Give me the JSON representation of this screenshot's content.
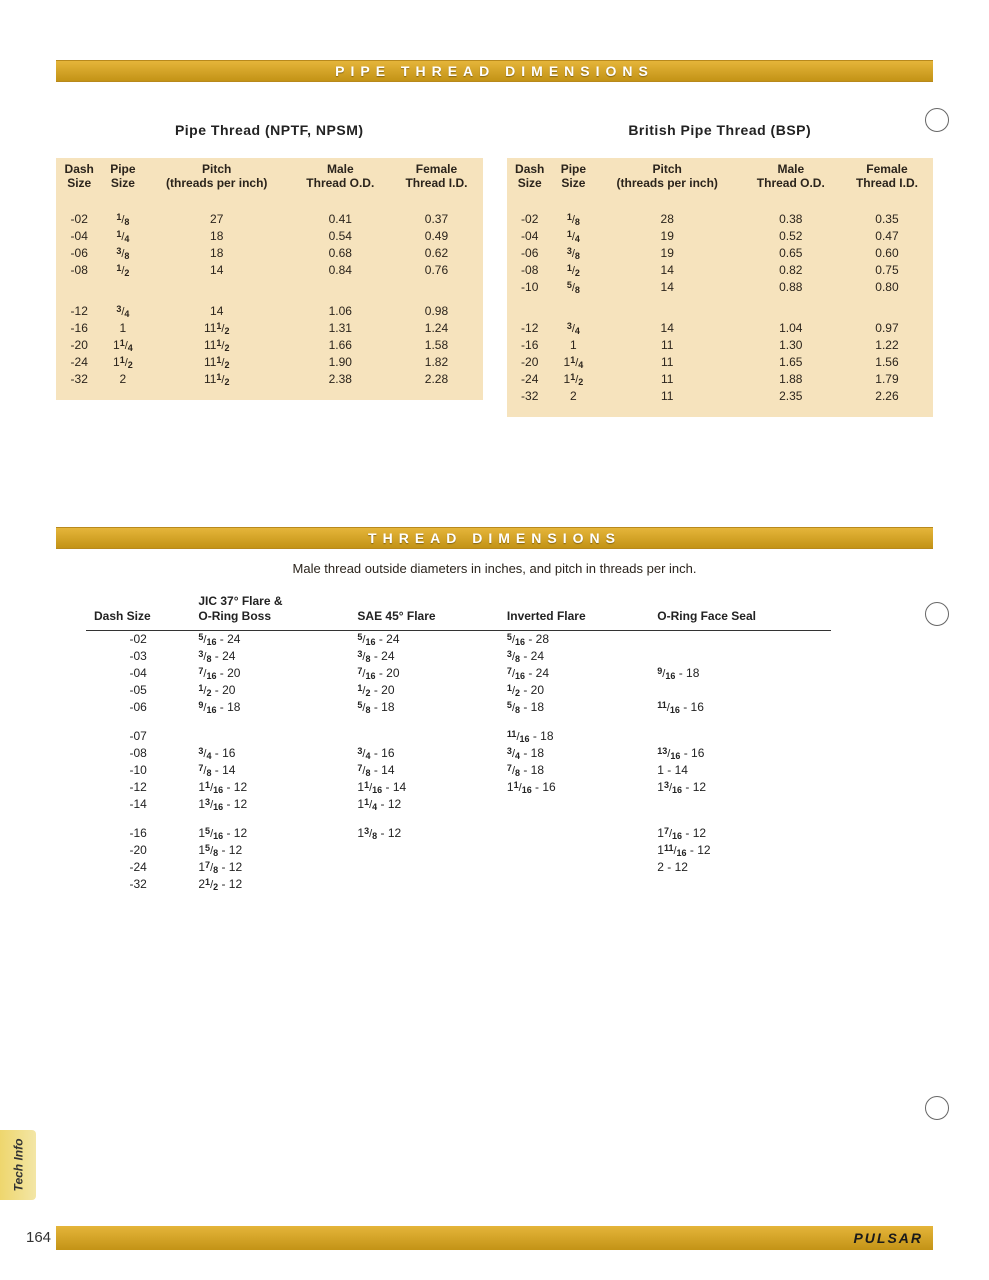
{
  "colors": {
    "banner_bg_top": "#e5b53a",
    "banner_bg_bottom": "#c39316",
    "banner_text": "#ffffff",
    "table_header_bg": "#f6e3bd",
    "table_row_bg": "#f6e3bd",
    "text": "#2b241c",
    "rule": "#333333",
    "tab_bg_start": "#eed66d",
    "tab_bg_end": "#f3e6a6",
    "hole_border": "#666666"
  },
  "typography": {
    "font_family": "Verdana, Geneva, sans-serif",
    "banner_title_size": 14,
    "banner_letter_spacing": 6,
    "table_font_size": 12,
    "subtitle_size": 13
  },
  "banner1_title": "PIPE THREAD DIMENSIONS",
  "banner2_title": "THREAD DIMENSIONS",
  "subtitle": "Male thread outside diameters in inches, and pitch in threads per inch.",
  "pipe_headers": {
    "dash": "Dash\nSize",
    "pipe": "Pipe\nSize",
    "pitch": "Pitch\n(threads per inch)",
    "male": "Male\nThread O.D.",
    "female": "Female\nThread I.D."
  },
  "nptf": {
    "title": "Pipe Thread (NPTF, NPSM)",
    "rows": [
      {
        "dash": "-02",
        "pipe": {
          "w": "",
          "n": "1",
          "d": "8"
        },
        "pitch": "27",
        "male": "0.41",
        "female": "0.37"
      },
      {
        "dash": "-04",
        "pipe": {
          "w": "",
          "n": "1",
          "d": "4"
        },
        "pitch": "18",
        "male": "0.54",
        "female": "0.49"
      },
      {
        "dash": "-06",
        "pipe": {
          "w": "",
          "n": "3",
          "d": "8"
        },
        "pitch": "18",
        "male": "0.68",
        "female": "0.62"
      },
      {
        "dash": "-08",
        "pipe": {
          "w": "",
          "n": "1",
          "d": "2"
        },
        "pitch": "14",
        "male": "0.84",
        "female": "0.76"
      }
    ],
    "rows2": [
      {
        "dash": "-12",
        "pipe": {
          "w": "",
          "n": "3",
          "d": "4"
        },
        "pitch": "14",
        "male": "1.06",
        "female": "0.98"
      },
      {
        "dash": "-16",
        "pipe": {
          "w": "1"
        },
        "pitch": {
          "w": "11",
          "n": "1",
          "d": "2"
        },
        "male": "1.31",
        "female": "1.24"
      },
      {
        "dash": "-20",
        "pipe": {
          "w": "1",
          "n": "1",
          "d": "4"
        },
        "pitch": {
          "w": "11",
          "n": "1",
          "d": "2"
        },
        "male": "1.66",
        "female": "1.58"
      },
      {
        "dash": "-24",
        "pipe": {
          "w": "1",
          "n": "1",
          "d": "2"
        },
        "pitch": {
          "w": "11",
          "n": "1",
          "d": "2"
        },
        "male": "1.90",
        "female": "1.82"
      },
      {
        "dash": "-32",
        "pipe": {
          "w": "2"
        },
        "pitch": {
          "w": "11",
          "n": "1",
          "d": "2"
        },
        "male": "2.38",
        "female": "2.28"
      }
    ]
  },
  "bsp": {
    "title": "British Pipe Thread (BSP)",
    "rows": [
      {
        "dash": "-02",
        "pipe": {
          "w": "",
          "n": "1",
          "d": "8"
        },
        "pitch": "28",
        "male": "0.38",
        "female": "0.35"
      },
      {
        "dash": "-04",
        "pipe": {
          "w": "",
          "n": "1",
          "d": "4"
        },
        "pitch": "19",
        "male": "0.52",
        "female": "0.47"
      },
      {
        "dash": "-06",
        "pipe": {
          "w": "",
          "n": "3",
          "d": "8"
        },
        "pitch": "19",
        "male": "0.65",
        "female": "0.60"
      },
      {
        "dash": "-08",
        "pipe": {
          "w": "",
          "n": "1",
          "d": "2"
        },
        "pitch": "14",
        "male": "0.82",
        "female": "0.75"
      },
      {
        "dash": "-10",
        "pipe": {
          "w": "",
          "n": "5",
          "d": "8"
        },
        "pitch": "14",
        "male": "0.88",
        "female": "0.80"
      }
    ],
    "rows2": [
      {
        "dash": "-12",
        "pipe": {
          "w": "",
          "n": "3",
          "d": "4"
        },
        "pitch": "14",
        "male": "1.04",
        "female": "0.97"
      },
      {
        "dash": "-16",
        "pipe": {
          "w": "1"
        },
        "pitch": "11",
        "male": "1.30",
        "female": "1.22"
      },
      {
        "dash": "-20",
        "pipe": {
          "w": "1",
          "n": "1",
          "d": "4"
        },
        "pitch": "11",
        "male": "1.65",
        "female": "1.56"
      },
      {
        "dash": "-24",
        "pipe": {
          "w": "1",
          "n": "1",
          "d": "2"
        },
        "pitch": "11",
        "male": "1.88",
        "female": "1.79"
      },
      {
        "dash": "-32",
        "pipe": {
          "w": "2"
        },
        "pitch": "11",
        "male": "2.35",
        "female": "2.26"
      }
    ]
  },
  "thread_headers": {
    "dash": "Dash Size",
    "jic": "JIC 37° Flare &\nO-Ring Boss",
    "sae": "SAE 45° Flare",
    "inv": "Inverted Flare",
    "oring": "O-Ring Face Seal"
  },
  "thread_rows": [
    {
      "dash": "-02",
      "jic": {
        "n": "5",
        "d": "16",
        "p": "24"
      },
      "sae": {
        "n": "5",
        "d": "16",
        "p": "24"
      },
      "inv": {
        "n": "5",
        "d": "16",
        "p": "28"
      },
      "oring": null
    },
    {
      "dash": "-03",
      "jic": {
        "n": "3",
        "d": "8",
        "p": "24"
      },
      "sae": {
        "n": "3",
        "d": "8",
        "p": "24"
      },
      "inv": {
        "n": "3",
        "d": "8",
        "p": "24"
      },
      "oring": null
    },
    {
      "dash": "-04",
      "jic": {
        "n": "7",
        "d": "16",
        "p": "20"
      },
      "sae": {
        "n": "7",
        "d": "16",
        "p": "20"
      },
      "inv": {
        "n": "7",
        "d": "16",
        "p": "24"
      },
      "oring": {
        "n": "9",
        "d": "16",
        "p": "18"
      }
    },
    {
      "dash": "-05",
      "jic": {
        "n": "1",
        "d": "2",
        "p": "20"
      },
      "sae": {
        "n": "1",
        "d": "2",
        "p": "20"
      },
      "inv": {
        "n": "1",
        "d": "2",
        "p": "20"
      },
      "oring": null
    },
    {
      "dash": "-06",
      "jic": {
        "n": "9",
        "d": "16",
        "p": "18"
      },
      "sae": {
        "n": "5",
        "d": "8",
        "p": "18"
      },
      "inv": {
        "n": "5",
        "d": "8",
        "p": "18"
      },
      "oring": {
        "n": "11",
        "d": "16",
        "p": "16"
      }
    }
  ],
  "thread_rows2": [
    {
      "dash": "-07",
      "jic": null,
      "sae": null,
      "inv": {
        "n": "11",
        "d": "16",
        "p": "18"
      },
      "oring": null
    },
    {
      "dash": "-08",
      "jic": {
        "n": "3",
        "d": "4",
        "p": "16"
      },
      "sae": {
        "n": "3",
        "d": "4",
        "p": "16"
      },
      "inv": {
        "n": "3",
        "d": "4",
        "p": "18"
      },
      "oring": {
        "n": "13",
        "d": "16",
        "p": "16"
      }
    },
    {
      "dash": "-10",
      "jic": {
        "n": "7",
        "d": "8",
        "p": "14"
      },
      "sae": {
        "n": "7",
        "d": "8",
        "p": "14"
      },
      "inv": {
        "n": "7",
        "d": "8",
        "p": "18"
      },
      "oring": {
        "w": "1",
        "p": "14"
      }
    },
    {
      "dash": "-12",
      "jic": {
        "w": "1",
        "n": "1",
        "d": "16",
        "p": "12"
      },
      "sae": {
        "w": "1",
        "n": "1",
        "d": "16",
        "p": "14"
      },
      "inv": {
        "w": "1",
        "n": "1",
        "d": "16",
        "p": "16"
      },
      "oring": {
        "w": "1",
        "n": "3",
        "d": "16",
        "p": "12"
      }
    },
    {
      "dash": "-14",
      "jic": {
        "w": "1",
        "n": "3",
        "d": "16",
        "p": "12"
      },
      "sae": {
        "w": "1",
        "n": "1",
        "d": "4",
        "p": "12"
      },
      "inv": null,
      "oring": null
    }
  ],
  "thread_rows3": [
    {
      "dash": "-16",
      "jic": {
        "w": "1",
        "n": "5",
        "d": "16",
        "p": "12"
      },
      "sae": {
        "w": "1",
        "n": "3",
        "d": "8",
        "p": "12"
      },
      "inv": null,
      "oring": {
        "w": "1",
        "n": "7",
        "d": "16",
        "p": "12"
      }
    },
    {
      "dash": "-20",
      "jic": {
        "w": "1",
        "n": "5",
        "d": "8",
        "p": "12"
      },
      "sae": null,
      "inv": null,
      "oring": {
        "w": "1",
        "n": "11",
        "d": "16",
        "p": "12"
      }
    },
    {
      "dash": "-24",
      "jic": {
        "w": "1",
        "n": "7",
        "d": "8",
        "p": "12"
      },
      "sae": null,
      "inv": null,
      "oring": {
        "w": "2",
        "p": "12"
      }
    },
    {
      "dash": "-32",
      "jic": {
        "w": "2",
        "n": "1",
        "d": "2",
        "p": "12"
      },
      "sae": null,
      "inv": null,
      "oring": null
    }
  ],
  "tab_label": "Tech Info",
  "page_number": "164",
  "brand": "PULSAR",
  "holes_y": [
    108,
    602,
    1096
  ]
}
